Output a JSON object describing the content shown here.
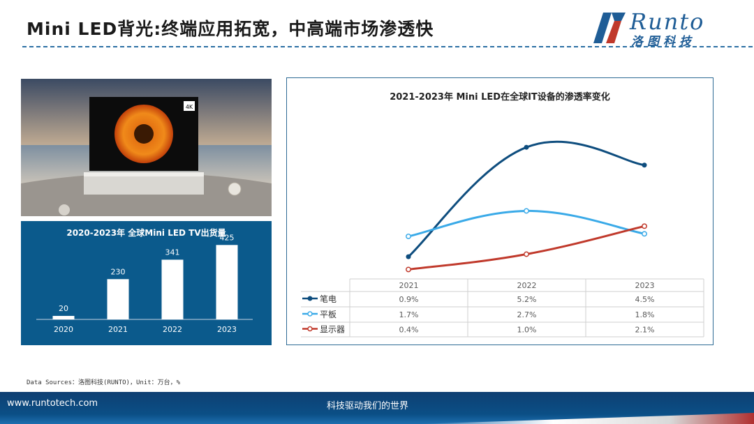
{
  "header": {
    "title": "Mini LED背光:终端应用拓宽，中高端市场渗透快",
    "logo_en": "Runto",
    "logo_cn": "洛图科技"
  },
  "colors": {
    "panel_blue": "#0b5a8c",
    "notebook": "#0e4d7e",
    "tablet": "#3aaae8",
    "display": "#c0392b"
  },
  "bar_chart": {
    "chart_data": {
      "type": "bar",
      "title": "2020-2023年 全球Mini LED TV出货量",
      "categories": [
        "2020",
        "2021",
        "2022",
        "2023"
      ],
      "values": [
        20,
        230,
        341,
        425
      ],
      "ylim": [
        0,
        470
      ]
    }
  },
  "line_chart": {
    "chart_data": {
      "type": "line",
      "title": "2021-2023年 Mini LED在全球IT设备的渗透率变化",
      "categories": [
        "2021",
        "2022",
        "2023"
      ],
      "series": [
        {
          "name": "笔电",
          "values": [
            0.9,
            5.2,
            4.5
          ],
          "labels": [
            "0.9%",
            "5.2%",
            "4.5%"
          ]
        },
        {
          "name": "平板",
          "values": [
            1.7,
            2.7,
            1.8
          ],
          "labels": [
            "1.7%",
            "2.7%",
            "1.8%"
          ]
        },
        {
          "name": "显示器",
          "values": [
            0.4,
            1.0,
            2.1
          ],
          "labels": [
            "0.4%",
            "1.0%",
            "2.1%"
          ]
        }
      ],
      "ylim": [
        0,
        6
      ]
    }
  },
  "footer": {
    "source": "Data Sources：洛图科技(RUNTO)，Unit：万台，%",
    "url": "www.runtotech.com",
    "slogan": "科技驱动我们的世界"
  },
  "photo": {
    "badge": "4K"
  }
}
